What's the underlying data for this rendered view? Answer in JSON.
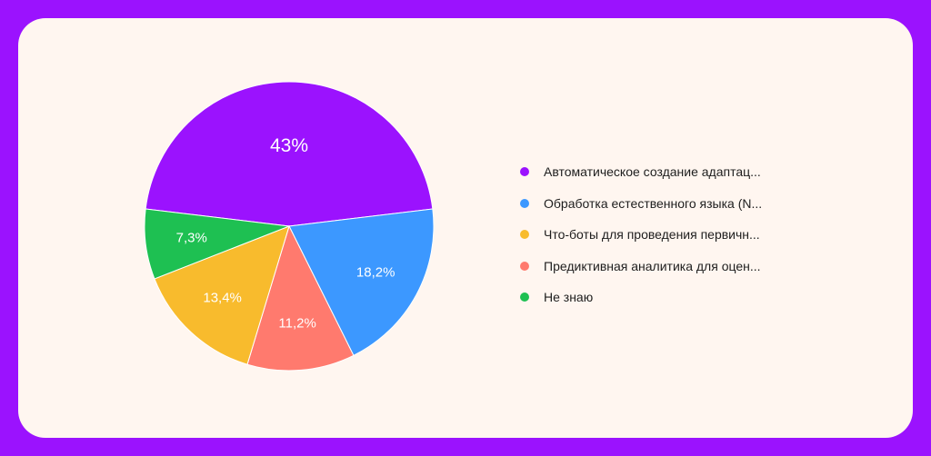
{
  "chart_data": {
    "type": "pie",
    "slices": [
      {
        "label": "Автоматическое создание адаптац...",
        "value": 43,
        "display": "43%",
        "color": "#9b12fe"
      },
      {
        "label": "Обработка естественного языка (N...",
        "value": 18.2,
        "display": "18,2%",
        "color": "#3c98ff"
      },
      {
        "label": "Что-боты для проведения первичн...",
        "value": 13.4,
        "display": "13,4%",
        "color": "#f8bb2d"
      },
      {
        "label": "Предиктивная аналитика для оцен...",
        "value": 11.2,
        "display": "11,2%",
        "color": "#ff7a6e"
      },
      {
        "label": "Не знаю",
        "value": 7.3,
        "display": "7,3%",
        "color": "#1ec052"
      }
    ],
    "slice_order_clockwise_from_top_left": [
      "Автоматическое создание адаптац...",
      "Обработка естественного языка (N...",
      "Предиктивная аналитика для оцен...",
      "Что-боты для проведения первичн...",
      "Не знаю"
    ],
    "legend_position": "right"
  }
}
